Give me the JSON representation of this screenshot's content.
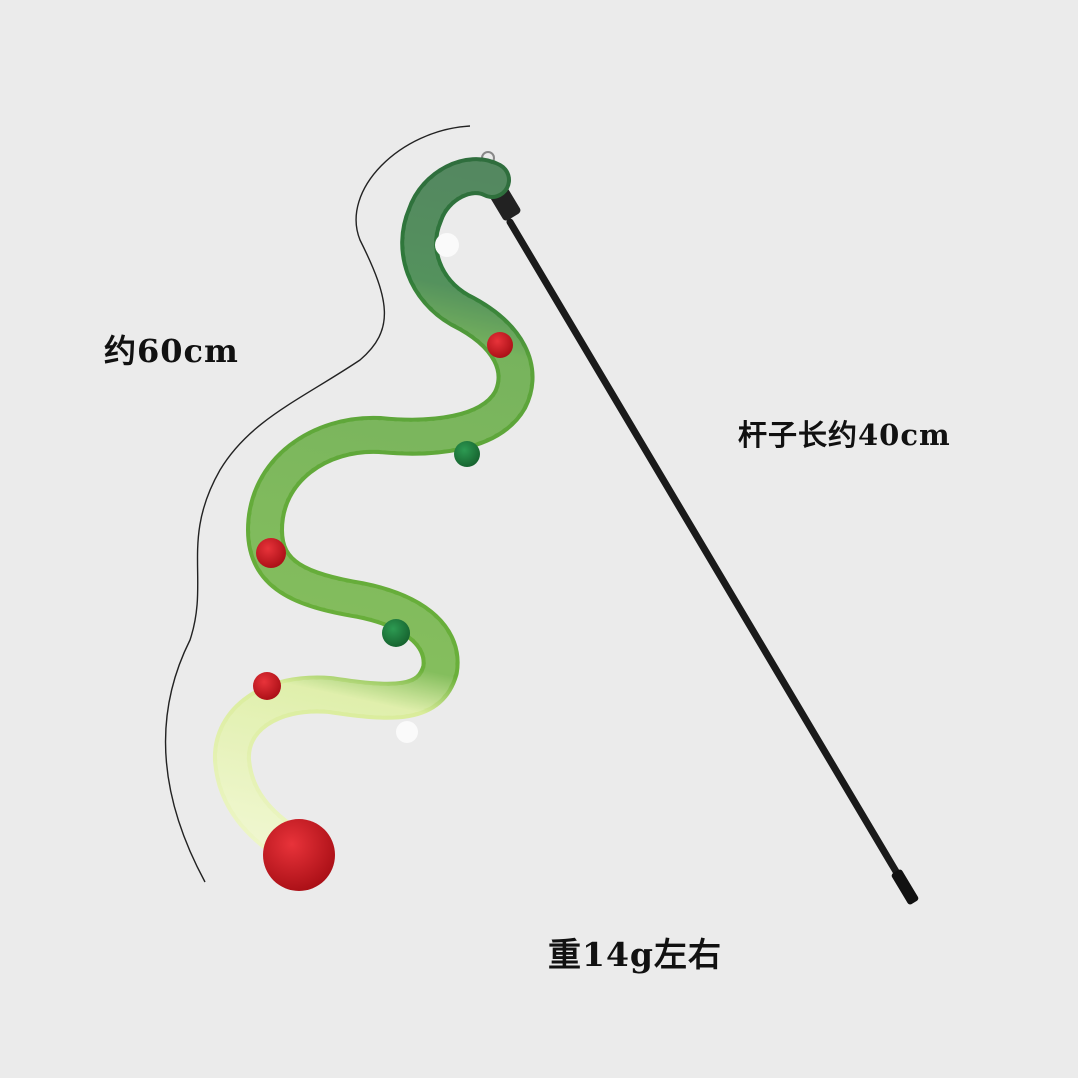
{
  "labels": {
    "length": "约60cm",
    "rod_length": "杆子长约40cm",
    "weight": "重14g左右"
  },
  "colors": {
    "background": "#ebebeb",
    "rope_dark_green": "#2f6e3d",
    "rope_green": "#6ab03a",
    "rope_light": "#e8f3b8",
    "pompom_red": "#c8141c",
    "pompom_green": "#1f7a3c",
    "pompom_white": "#ffffff",
    "rod": "#1a1a1a"
  }
}
